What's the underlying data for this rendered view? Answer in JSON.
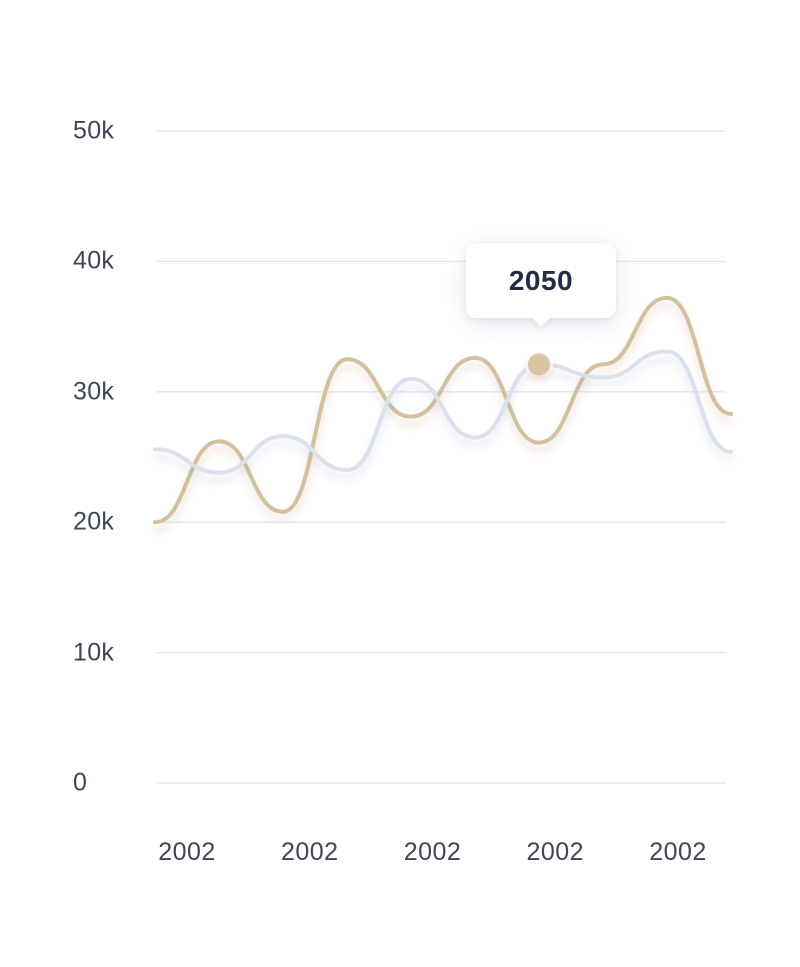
{
  "chart_data": {
    "type": "line",
    "title": "",
    "curve": "smooth",
    "grid": "horizontal-only",
    "legend": "none",
    "x_axis": {
      "labels": [
        "2002",
        "2002",
        "2002",
        "2002",
        "2002"
      ]
    },
    "y_axis": {
      "range": [
        0,
        50000
      ],
      "ticks": [
        {
          "label": "50k",
          "value": 50000
        },
        {
          "label": "40k",
          "value": 40000
        },
        {
          "label": "30k",
          "value": 30000
        },
        {
          "label": "20k",
          "value": 20000
        },
        {
          "label": "10k",
          "value": 10000
        },
        {
          "label": "0",
          "value": 0
        }
      ]
    },
    "series": [
      {
        "name": "series-tan",
        "color": "#d4bf9e",
        "values": [
          20000,
          26200,
          20800,
          32500,
          28100,
          32600,
          26100,
          32100,
          37200,
          28300
        ]
      },
      {
        "name": "series-gray",
        "color": "#dbe1ec",
        "values": [
          25600,
          23800,
          26600,
          24000,
          31000,
          26500,
          32100,
          31100,
          33100,
          25400
        ]
      }
    ],
    "tooltip": {
      "value": "2050",
      "series": "series-gray",
      "point_index": 6,
      "marker_color": "#d9c4a3"
    }
  },
  "colors": {
    "background": "#ffffff",
    "gridline": "#e6e6ea",
    "axis_label": "#3e4657",
    "tooltip_text": "#232b45"
  }
}
